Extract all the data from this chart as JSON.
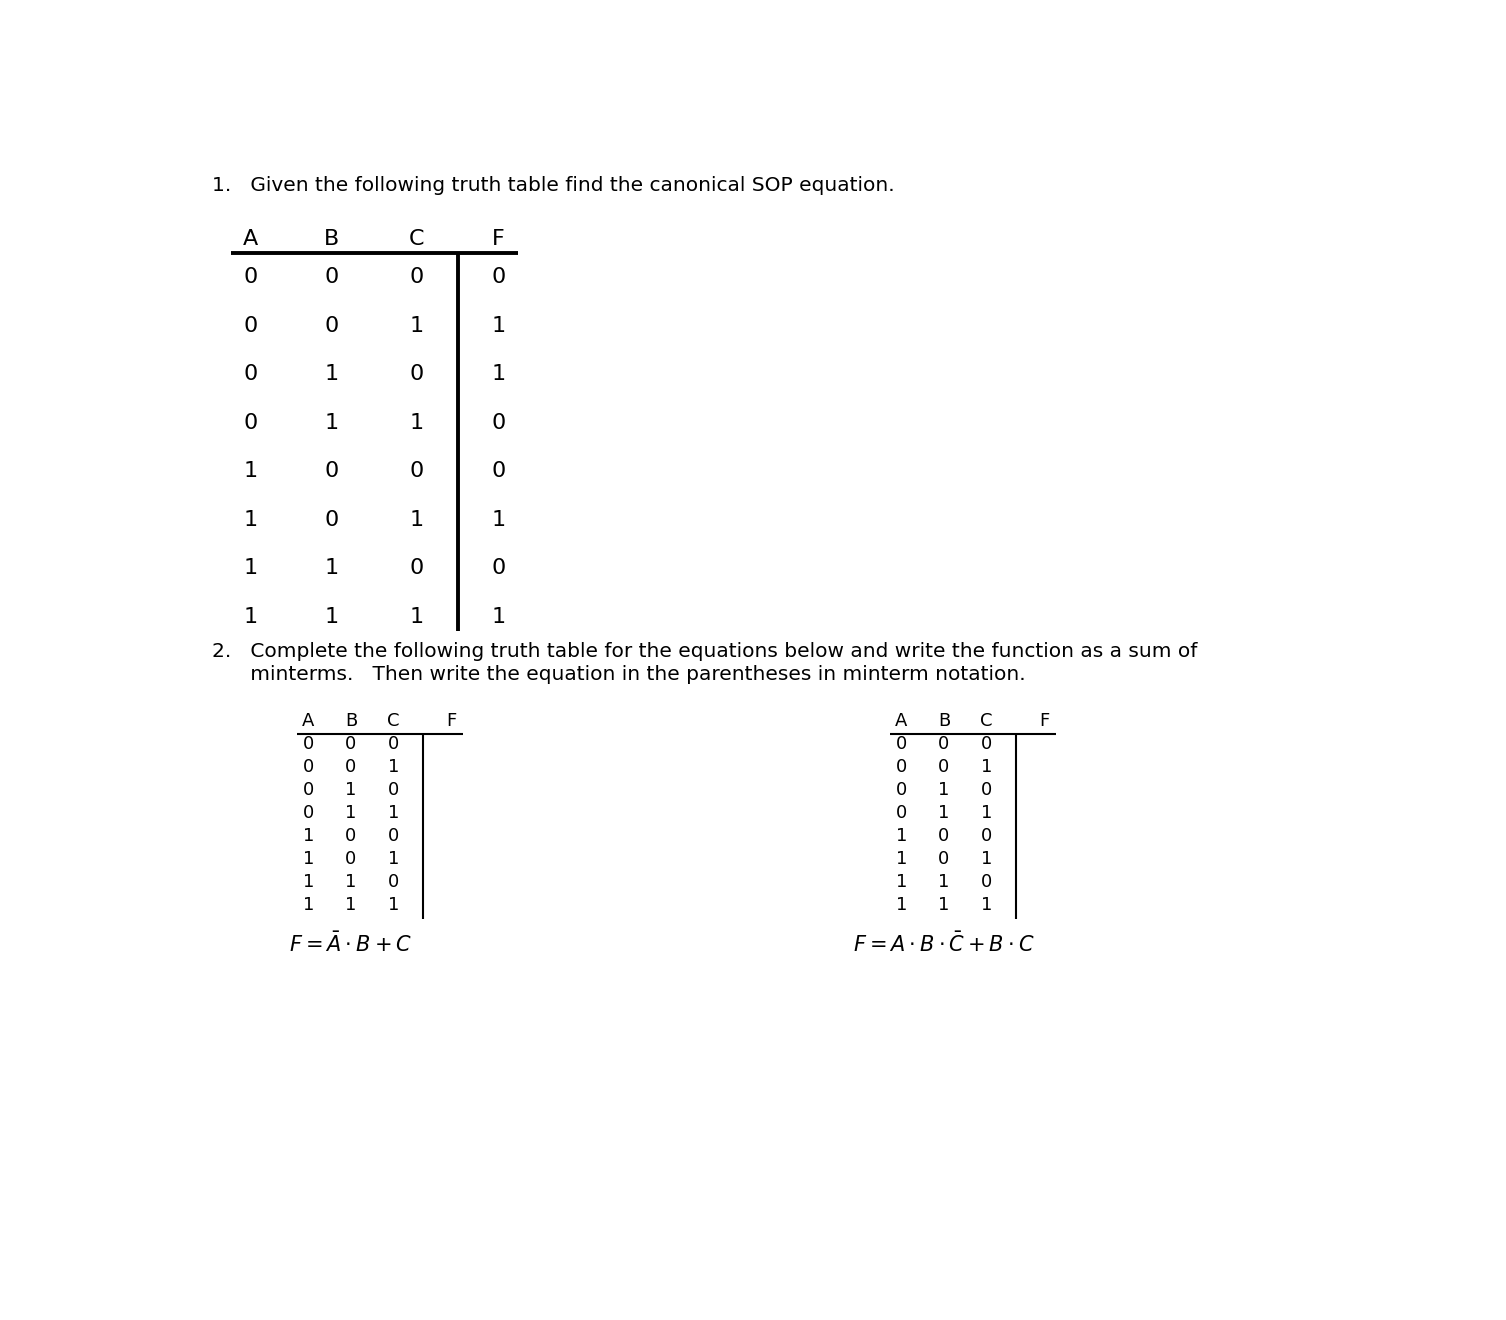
{
  "title1": "1.   Given the following truth table find the canonical SOP equation.",
  "title2_line1": "2.   Complete the following truth table for the equations below and write the function as a sum of",
  "title2_line2": "      minterms.   Then write the equation in the parentheses in minterm notation.",
  "table1": {
    "headers": [
      "A",
      "B",
      "C",
      "F"
    ],
    "rows": [
      [
        0,
        0,
        0,
        0
      ],
      [
        0,
        0,
        1,
        1
      ],
      [
        0,
        1,
        0,
        1
      ],
      [
        0,
        1,
        1,
        0
      ],
      [
        1,
        0,
        0,
        0
      ],
      [
        1,
        0,
        1,
        1
      ],
      [
        1,
        1,
        0,
        0
      ],
      [
        1,
        1,
        1,
        1
      ]
    ]
  },
  "table2_left": {
    "headers": [
      "A",
      "B",
      "C",
      "F"
    ],
    "rows": [
      [
        0,
        0,
        0,
        ""
      ],
      [
        0,
        0,
        1,
        ""
      ],
      [
        0,
        1,
        0,
        ""
      ],
      [
        0,
        1,
        1,
        ""
      ],
      [
        1,
        0,
        0,
        ""
      ],
      [
        1,
        0,
        1,
        ""
      ],
      [
        1,
        1,
        0,
        ""
      ],
      [
        1,
        1,
        1,
        ""
      ]
    ],
    "formula": "$F = \\bar{A} \\cdot B + C$"
  },
  "table2_right": {
    "headers": [
      "A",
      "B",
      "C",
      "F"
    ],
    "rows": [
      [
        0,
        0,
        0,
        ""
      ],
      [
        0,
        0,
        1,
        ""
      ],
      [
        0,
        1,
        0,
        ""
      ],
      [
        0,
        1,
        1,
        ""
      ],
      [
        1,
        0,
        0,
        ""
      ],
      [
        1,
        0,
        1,
        ""
      ],
      [
        1,
        1,
        0,
        ""
      ],
      [
        1,
        1,
        1,
        ""
      ]
    ],
    "formula": "$F = A \\cdot B \\cdot \\bar{C} + B \\cdot C$"
  },
  "background_color": "#ffffff",
  "text_color": "#000000",
  "line_color": "#000000",
  "fontsize_title": 14.5,
  "fontsize_table1": 16,
  "fontsize_table2": 13,
  "fontsize_formula": 15
}
